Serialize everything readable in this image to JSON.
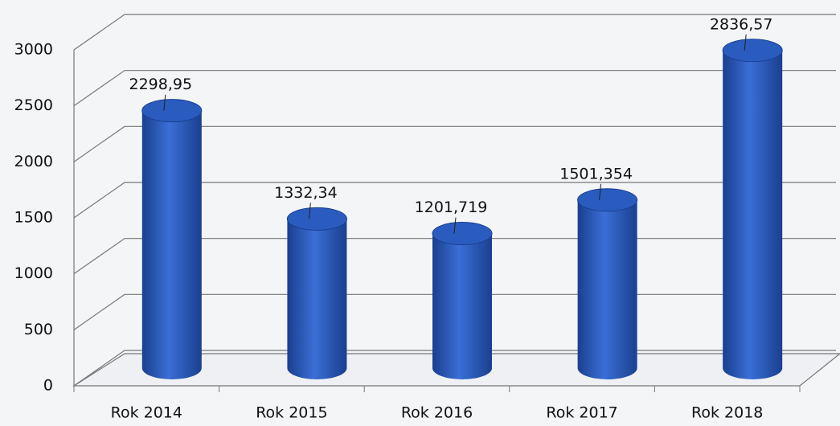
{
  "chart_data": {
    "type": "bar",
    "categories": [
      "Rok 2014",
      "Rok 2015",
      "Rok 2016",
      "Rok 2017",
      "Rok 2018"
    ],
    "values": [
      2298.95,
      1332.34,
      1201.719,
      1501.354,
      2836.57
    ],
    "value_labels": [
      "2298,95",
      "1332,34",
      "1201,719",
      "1501,354",
      "2836,57"
    ],
    "color": "#2a5cbf",
    "ylim": [
      0,
      3000
    ],
    "yticks": [
      0,
      500,
      1000,
      1500,
      2000,
      2500,
      3000
    ],
    "grid": true
  }
}
